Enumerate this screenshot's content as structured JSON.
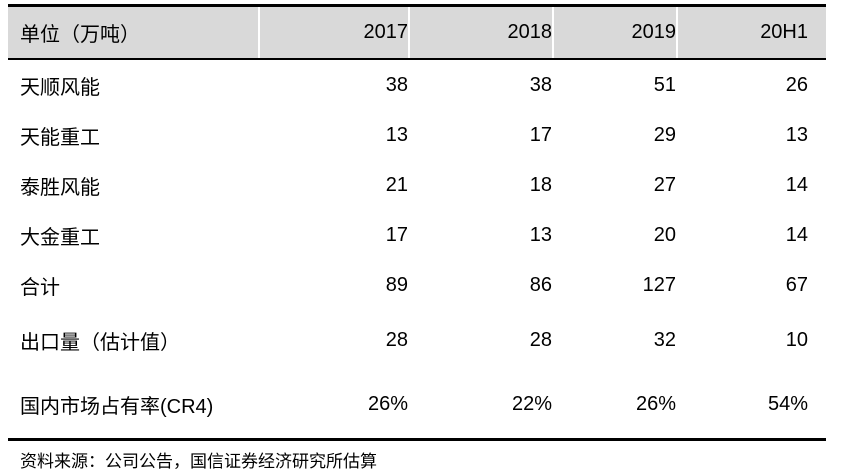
{
  "table": {
    "header": {
      "label": "单位（万吨）",
      "years": [
        "2017",
        "2018",
        "2019",
        "20H1"
      ]
    },
    "rows": [
      {
        "label": "天顺风能",
        "values": [
          "38",
          "38",
          "51",
          "26"
        ]
      },
      {
        "label": "天能重工",
        "values": [
          "13",
          "17",
          "29",
          "13"
        ]
      },
      {
        "label": "泰胜风能",
        "values": [
          "21",
          "18",
          "27",
          "14"
        ]
      },
      {
        "label": "大金重工",
        "values": [
          "17",
          "13",
          "20",
          "14"
        ]
      },
      {
        "label": "合计",
        "values": [
          "89",
          "86",
          "127",
          "67"
        ]
      },
      {
        "label": "出口量（估计值）",
        "values": [
          "28",
          "28",
          "32",
          "10"
        ]
      },
      {
        "label": "国内市场占有率(CR4)",
        "values": [
          "26%",
          "22%",
          "26%",
          "54%"
        ]
      }
    ]
  },
  "source": "资料来源：公司公告，国信证券经济研究所估算"
}
